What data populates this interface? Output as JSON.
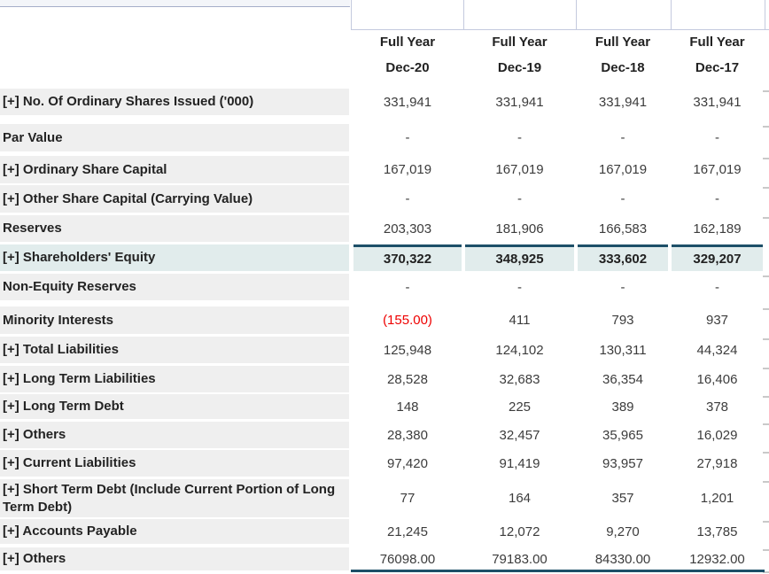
{
  "header": {
    "period_label": "Full Year",
    "columns": [
      "Dec-20",
      "Dec-19",
      "Dec-18",
      "Dec-17"
    ]
  },
  "rows": [
    {
      "label": "[+] No. Of Ordinary Shares Issued ('000)",
      "expandable": true,
      "highlight": false,
      "values": [
        "331,941",
        "331,941",
        "331,941",
        "331,941"
      ]
    },
    {
      "label": "Par Value",
      "expandable": false,
      "highlight": false,
      "values": [
        "-",
        "-",
        "-",
        "-"
      ]
    },
    {
      "label": "[+] Ordinary Share Capital",
      "expandable": true,
      "highlight": false,
      "values": [
        "167,019",
        "167,019",
        "167,019",
        "167,019"
      ]
    },
    {
      "label": "[+] Other Share Capital (Carrying Value)",
      "expandable": true,
      "highlight": false,
      "values": [
        "-",
        "-",
        "-",
        "-"
      ]
    },
    {
      "label": "Reserves",
      "expandable": false,
      "highlight": false,
      "values": [
        "203,303",
        "181,906",
        "166,583",
        "162,189"
      ]
    },
    {
      "label": "[+] Shareholders' Equity",
      "expandable": true,
      "highlight": true,
      "values": [
        "370,322",
        "348,925",
        "333,602",
        "329,207"
      ]
    },
    {
      "label": "Non-Equity Reserves",
      "expandable": false,
      "highlight": false,
      "values": [
        "-",
        "-",
        "-",
        "-"
      ]
    },
    {
      "label": "Minority Interests",
      "expandable": false,
      "highlight": false,
      "values": [
        "(155.00)",
        "411",
        "793",
        "937"
      ],
      "negative_indices": [
        0
      ]
    },
    {
      "label": "[+] Total Liabilities",
      "expandable": true,
      "highlight": false,
      "values": [
        "125,948",
        "124,102",
        "130,311",
        "44,324"
      ]
    },
    {
      "label": "[+] Long Term Liabilities",
      "expandable": true,
      "highlight": false,
      "values": [
        "28,528",
        "32,683",
        "36,354",
        "16,406"
      ]
    },
    {
      "label": "[+] Long Term Debt",
      "expandable": true,
      "highlight": false,
      "values": [
        "148",
        "225",
        "389",
        "378"
      ]
    },
    {
      "label": "[+] Others",
      "expandable": true,
      "highlight": false,
      "values": [
        "28,380",
        "32,457",
        "35,965",
        "16,029"
      ]
    },
    {
      "label": "[+] Current Liabilities",
      "expandable": true,
      "highlight": false,
      "values": [
        "97,420",
        "91,419",
        "93,957",
        "27,918"
      ]
    },
    {
      "label": "[+] Short Term Debt (Include Current Portion of Long Term Debt)",
      "expandable": true,
      "highlight": false,
      "values": [
        "77",
        "164",
        "357",
        "1,201"
      ]
    },
    {
      "label": "[+] Accounts Payable",
      "expandable": true,
      "highlight": false,
      "values": [
        "21,245",
        "12,072",
        "9,270",
        "13,785"
      ]
    },
    {
      "label": "[+] Others",
      "expandable": true,
      "highlight": false,
      "values": [
        "76098.00",
        "79183.00",
        "84330.00",
        "12932.00"
      ]
    }
  ],
  "colors": {
    "accent_navy": "#1d4f68",
    "negative_red": "#ee0000",
    "highlight_bg": "#e1ecec",
    "label_bg": "#efefef",
    "grid_line": "#c4cade"
  }
}
